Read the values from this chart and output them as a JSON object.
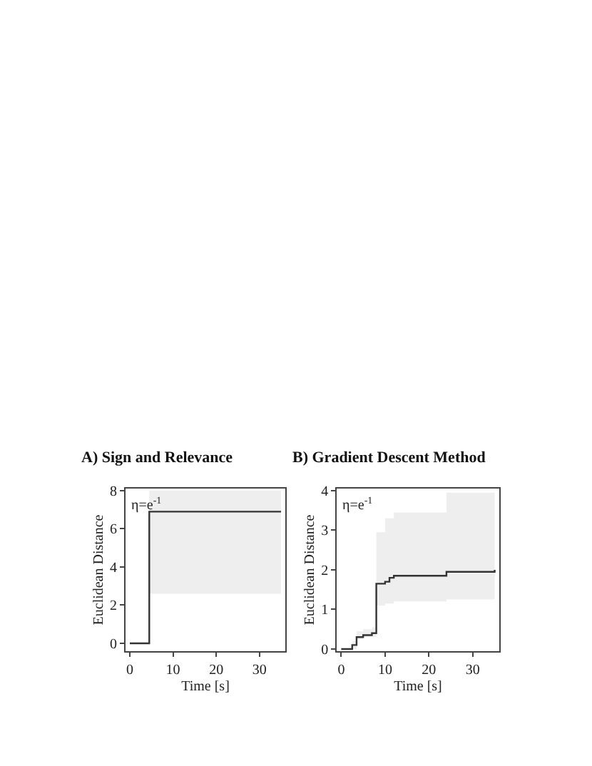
{
  "chart_data": [
    {
      "type": "step",
      "title": "A) Sign and Relevance",
      "xlabel": "Time [s]",
      "ylabel": "Euclidean Distance",
      "annotations": [
        "η=e$^{-1}$"
      ],
      "xlim": [
        -1,
        36
      ],
      "ylim": [
        -0.4,
        8.1
      ],
      "xticks": [
        0,
        10,
        20,
        30
      ],
      "yticks": [
        0,
        2,
        4,
        6,
        8
      ],
      "line_style": "solid",
      "marker": "none",
      "series": [
        {
          "color": "#333333",
          "x": [
            0,
            4.5,
            35
          ],
          "values": [
            0,
            6.9,
            6.9
          ],
          "lower": [
            0,
            2.6,
            2.6
          ],
          "upper": [
            0,
            8.0,
            8.0
          ]
        }
      ]
    },
    {
      "type": "step",
      "title": "B) Gradient Descent Method",
      "xlabel": "Time [s]",
      "ylabel": "Euclidean Distance",
      "annotations": [
        "η=e$^{-1}$"
      ],
      "xlim": [
        -1,
        36
      ],
      "ylim": [
        -0.05,
        4.05
      ],
      "xticks": [
        0,
        10,
        20,
        30
      ],
      "yticks": [
        0,
        1,
        2,
        3,
        4
      ],
      "line_style": "solid",
      "marker": "none",
      "series": [
        {
          "color": "#333333",
          "x": [
            0,
            2.5,
            3.5,
            5,
            7,
            8,
            10,
            11,
            12,
            23,
            24,
            35
          ],
          "values": [
            0,
            0.1,
            0.3,
            0.35,
            0.4,
            1.65,
            1.7,
            1.8,
            1.85,
            1.85,
            1.95,
            2.0
          ],
          "lower": [
            0,
            0,
            0.25,
            0.3,
            0.3,
            1.1,
            1.15,
            1.15,
            1.2,
            1.2,
            1.25,
            1.25
          ],
          "upper": [
            0,
            0.2,
            0.45,
            0.5,
            0.55,
            2.95,
            3.3,
            3.3,
            3.45,
            3.45,
            3.95,
            3.95
          ]
        }
      ]
    }
  ]
}
